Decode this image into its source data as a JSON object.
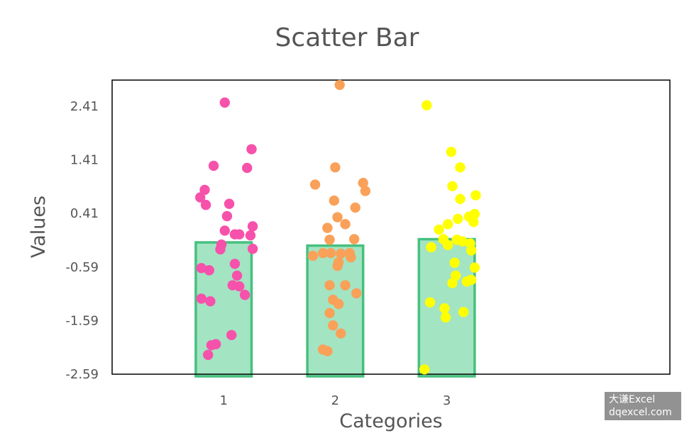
{
  "chart_data": {
    "type": "scatter",
    "title": "Scatter Bar",
    "xlabel": "Categories",
    "ylabel": "Values",
    "categories": [
      "1",
      "2",
      "3"
    ],
    "y_ticks": [
      "2.41",
      "1.41",
      "0.41",
      "-0.59",
      "-1.59",
      "-2.59"
    ],
    "ylim": [
      -2.59,
      2.9
    ],
    "bars": {
      "values": [
        -0.13,
        -0.19,
        -0.07
      ],
      "fill": "#a3e4c3",
      "edge": "#47c07f"
    },
    "series": [
      {
        "category": "1",
        "color": "#f652ab",
        "points": [
          [
            1.01,
            2.48
          ],
          [
            1.25,
            1.61
          ],
          [
            1.21,
            1.26
          ],
          [
            0.91,
            1.3
          ],
          [
            0.83,
            0.85
          ],
          [
            0.79,
            0.71
          ],
          [
            0.84,
            0.57
          ],
          [
            1.05,
            0.59
          ],
          [
            1.03,
            0.36
          ],
          [
            1.26,
            0.17
          ],
          [
            1.01,
            0.09
          ],
          [
            1.1,
            0.02
          ],
          [
            1.14,
            0.02
          ],
          [
            1.24,
            0.0
          ],
          [
            0.98,
            -0.17
          ],
          [
            1.26,
            -0.25
          ],
          [
            0.97,
            -0.26
          ],
          [
            1.1,
            -0.53
          ],
          [
            0.8,
            -0.61
          ],
          [
            0.87,
            -0.65
          ],
          [
            1.12,
            -0.75
          ],
          [
            1.08,
            -0.93
          ],
          [
            1.14,
            -0.95
          ],
          [
            1.19,
            -1.11
          ],
          [
            0.8,
            -1.18
          ],
          [
            0.88,
            -1.23
          ],
          [
            1.07,
            -1.86
          ],
          [
            0.93,
            -2.03
          ],
          [
            0.89,
            -2.05
          ],
          [
            0.86,
            -2.23
          ]
        ]
      },
      {
        "category": "2",
        "color": "#f9a159",
        "points": [
          [
            2.04,
            2.81
          ],
          [
            2.0,
            1.27
          ],
          [
            1.82,
            0.95
          ],
          [
            2.25,
            0.98
          ],
          [
            2.27,
            0.83
          ],
          [
            1.99,
            0.65
          ],
          [
            2.18,
            0.52
          ],
          [
            2.02,
            0.34
          ],
          [
            2.09,
            0.21
          ],
          [
            1.93,
            0.14
          ],
          [
            2.17,
            -0.07
          ],
          [
            1.95,
            -0.08
          ],
          [
            1.89,
            -0.33
          ],
          [
            1.96,
            -0.33
          ],
          [
            2.05,
            -0.34
          ],
          [
            2.13,
            -0.33
          ],
          [
            1.8,
            -0.38
          ],
          [
            2.14,
            -0.41
          ],
          [
            2.03,
            -0.5
          ],
          [
            2.02,
            -0.57
          ],
          [
            1.95,
            -0.93
          ],
          [
            2.09,
            -0.93
          ],
          [
            2.19,
            -1.08
          ],
          [
            1.98,
            -1.2
          ],
          [
            2.03,
            -1.28
          ],
          [
            1.95,
            -1.45
          ],
          [
            1.98,
            -1.68
          ],
          [
            2.05,
            -1.83
          ],
          [
            1.89,
            -2.13
          ],
          [
            1.93,
            -2.16
          ]
        ]
      },
      {
        "category": "3",
        "color": "#ffff00",
        "points": [
          [
            2.82,
            2.43
          ],
          [
            3.04,
            1.56
          ],
          [
            3.12,
            1.27
          ],
          [
            3.05,
            0.92
          ],
          [
            3.26,
            0.75
          ],
          [
            3.12,
            0.68
          ],
          [
            3.25,
            0.4
          ],
          [
            3.2,
            0.35
          ],
          [
            3.1,
            0.31
          ],
          [
            3.24,
            0.25
          ],
          [
            3.01,
            0.21
          ],
          [
            2.93,
            0.11
          ],
          [
            2.97,
            -0.07
          ],
          [
            3.09,
            -0.08
          ],
          [
            3.14,
            -0.11
          ],
          [
            3.21,
            -0.15
          ],
          [
            2.86,
            -0.22
          ],
          [
            3.01,
            -0.18
          ],
          [
            3.22,
            -0.28
          ],
          [
            3.07,
            -0.51
          ],
          [
            3.25,
            -0.6
          ],
          [
            3.08,
            -0.75
          ],
          [
            3.22,
            -0.83
          ],
          [
            3.18,
            -0.86
          ],
          [
            3.05,
            -0.89
          ],
          [
            2.85,
            -1.25
          ],
          [
            2.98,
            -1.36
          ],
          [
            3.15,
            -1.43
          ],
          [
            2.99,
            -1.53
          ],
          [
            2.8,
            -2.5
          ]
        ]
      }
    ]
  },
  "watermark": {
    "line1": "大谦Excel",
    "line2": "dqexcel.com"
  }
}
